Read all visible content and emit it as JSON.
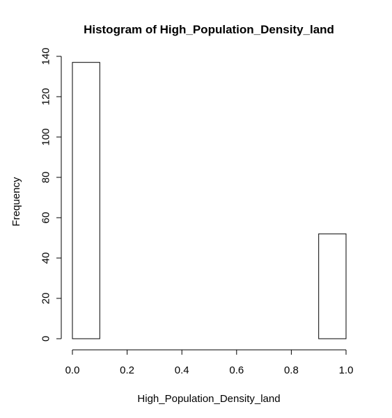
{
  "chart_data": {
    "type": "histogram",
    "title": "Histogram of High_Population_Density_land",
    "xlabel": "High_Population_Density_land",
    "ylabel": "Frequency",
    "bins": [
      {
        "x0": 0.0,
        "x1": 0.1,
        "count": 137
      },
      {
        "x0": 0.1,
        "x1": 0.2,
        "count": 0
      },
      {
        "x0": 0.2,
        "x1": 0.3,
        "count": 0
      },
      {
        "x0": 0.3,
        "x1": 0.4,
        "count": 0
      },
      {
        "x0": 0.4,
        "x1": 0.5,
        "count": 0
      },
      {
        "x0": 0.5,
        "x1": 0.6,
        "count": 0
      },
      {
        "x0": 0.6,
        "x1": 0.7,
        "count": 0
      },
      {
        "x0": 0.7,
        "x1": 0.8,
        "count": 0
      },
      {
        "x0": 0.8,
        "x1": 0.9,
        "count": 0
      },
      {
        "x0": 0.9,
        "x1": 1.0,
        "count": 52
      }
    ],
    "xlim": [
      0,
      1
    ],
    "ylim": [
      0,
      140
    ],
    "x_ticks": [
      0.0,
      0.2,
      0.4,
      0.6,
      0.8,
      1.0
    ],
    "x_tick_labels": [
      "0.0",
      "0.2",
      "0.4",
      "0.6",
      "0.8",
      "1.0"
    ],
    "y_ticks": [
      0,
      20,
      40,
      60,
      80,
      100,
      120,
      140
    ],
    "y_tick_labels": [
      "0",
      "20",
      "40",
      "60",
      "80",
      "100",
      "120",
      "140"
    ],
    "grid": false,
    "bar_fill": "#ffffff",
    "bar_stroke": "#000000"
  }
}
